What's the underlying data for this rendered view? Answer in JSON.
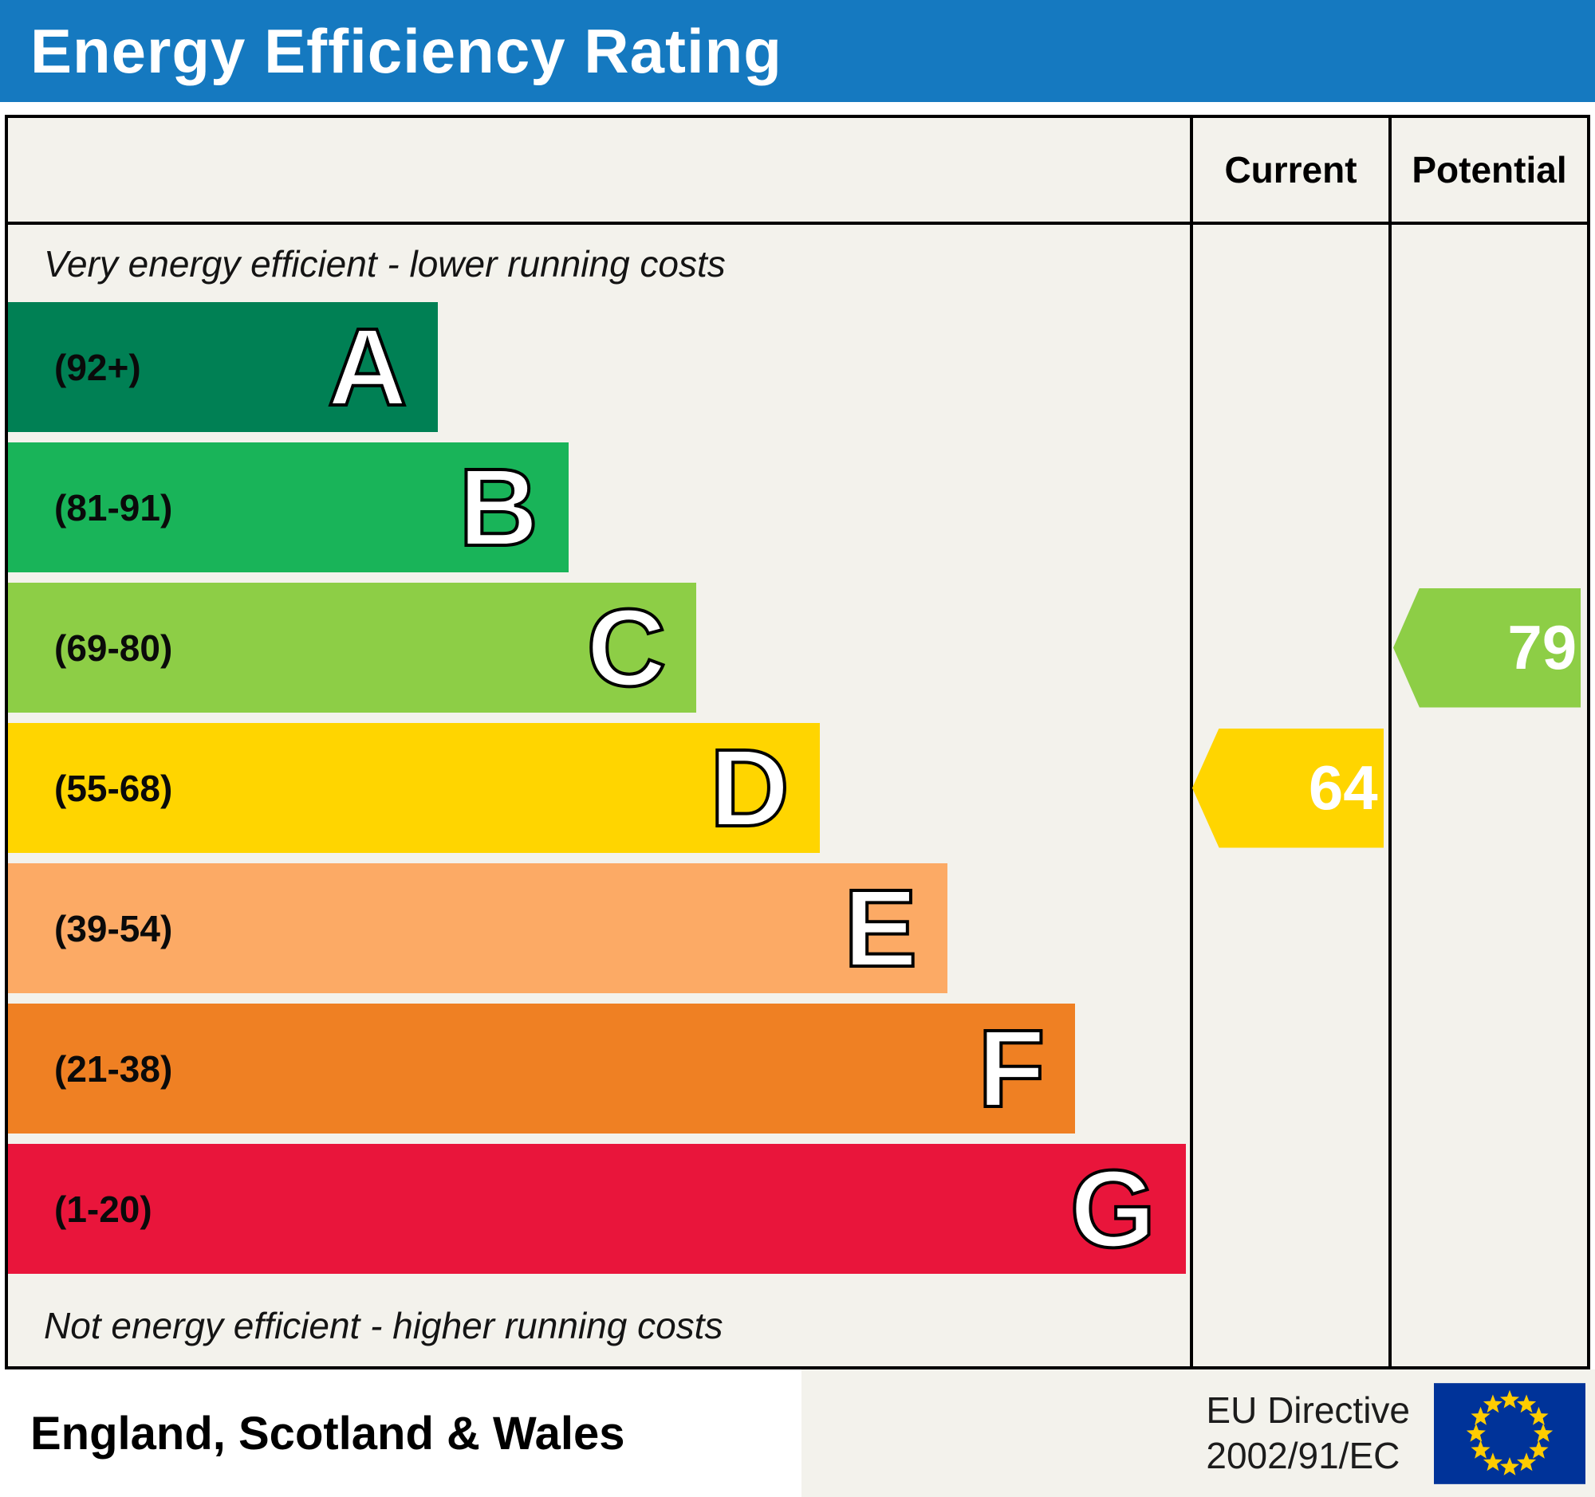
{
  "title": "Energy Efficiency Rating",
  "columns": {
    "current": "Current",
    "potential": "Potential"
  },
  "top_caption": "Very energy efficient - lower running costs",
  "bottom_caption": "Not energy efficient - higher running costs",
  "bands": [
    {
      "letter": "A",
      "range": "(92+)",
      "color": "#008054",
      "width_pct": 27.2
    },
    {
      "letter": "B",
      "range": "(81-91)",
      "color": "#19b459",
      "width_pct": 35.5
    },
    {
      "letter": "C",
      "range": "(69-80)",
      "color": "#8dce46",
      "width_pct": 43.6
    },
    {
      "letter": "D",
      "range": "(55-68)",
      "color": "#ffd500",
      "width_pct": 51.4
    },
    {
      "letter": "E",
      "range": "(39-54)",
      "color": "#fcaa65",
      "width_pct": 59.5
    },
    {
      "letter": "F",
      "range": "(21-38)",
      "color": "#ef8023",
      "width_pct": 67.6
    },
    {
      "letter": "G",
      "range": "(1-20)",
      "color": "#e9153b",
      "width_pct": 74.6
    }
  ],
  "current": {
    "value": "64",
    "band_index": 3,
    "color": "#ffd500"
  },
  "potential": {
    "value": "79",
    "band_index": 2,
    "color": "#8dce46"
  },
  "footer": {
    "region": "England, Scotland & Wales",
    "directive_line1": "EU Directive",
    "directive_line2": "2002/91/EC"
  },
  "chart_data": {
    "type": "bar",
    "orientation": "horizontal",
    "title": "Energy Efficiency Rating",
    "categories": [
      "A (92+)",
      "B (81-91)",
      "C (69-80)",
      "D (55-68)",
      "E (39-54)",
      "F (21-38)",
      "G (1-20)"
    ],
    "band_colors": [
      "#008054",
      "#19b459",
      "#8dce46",
      "#ffd500",
      "#fcaa65",
      "#ef8023",
      "#e9153b"
    ],
    "series": [
      {
        "name": "Current",
        "values": [
          64
        ],
        "band": "D",
        "color": "#ffd500"
      },
      {
        "name": "Potential",
        "values": [
          79
        ],
        "band": "C",
        "color": "#8dce46"
      }
    ],
    "scale_range": [
      1,
      100
    ],
    "top_caption": "Very energy efficient - lower running costs",
    "bottom_caption": "Not energy efficient - higher running costs",
    "region": "England, Scotland & Wales",
    "directive": "EU Directive 2002/91/EC"
  }
}
